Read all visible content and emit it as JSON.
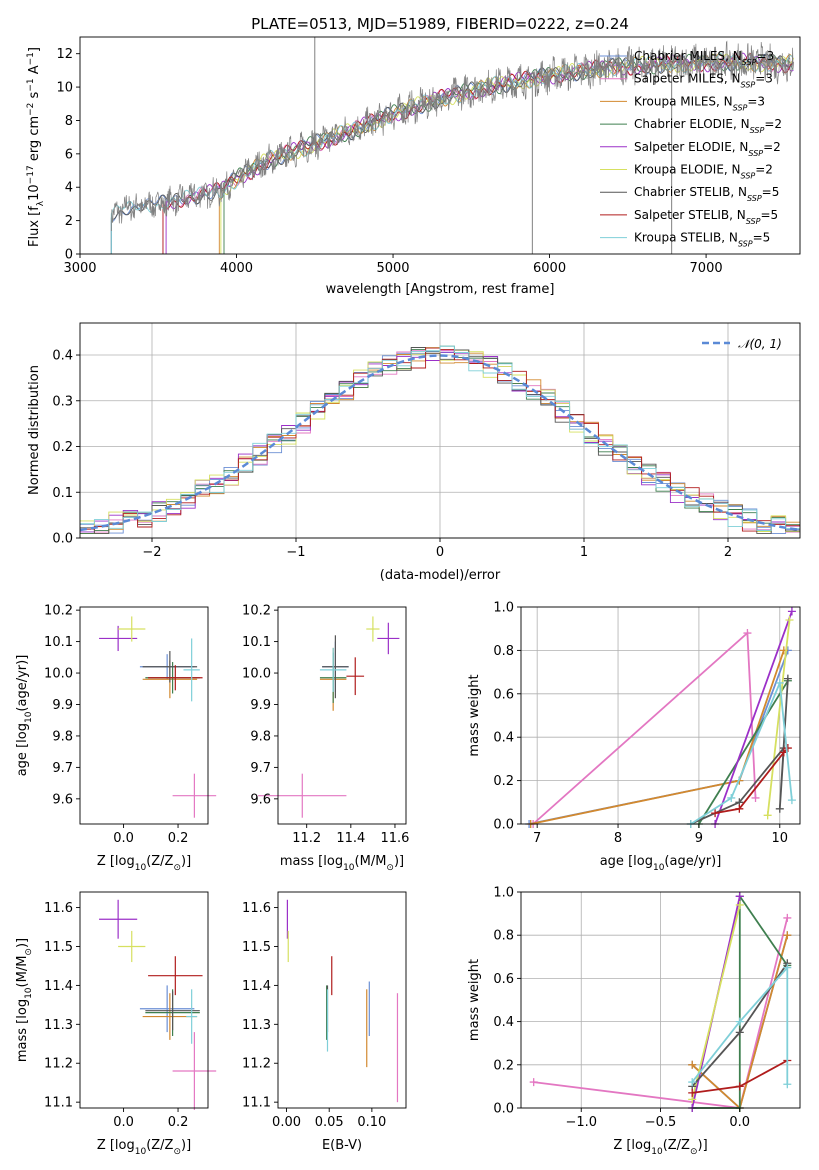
{
  "page": {
    "title": "PLATE=0513, MJD=51989, FIBERID=0222, z=0.24"
  },
  "legend": {
    "entries": [
      {
        "label": "Chabrier MILES, N",
        "sub": "SSP",
        "suffix": "=3",
        "color": "#6b8fd4"
      },
      {
        "label": "Salpeter MILES, N",
        "sub": "SSP",
        "suffix": "=3",
        "color": "#e377c2"
      },
      {
        "label": "Kroupa MILES, N",
        "sub": "SSP",
        "suffix": "=3",
        "color": "#d2892f"
      },
      {
        "label": "Chabrier ELODIE, N",
        "sub": "SSP",
        "suffix": "=2",
        "color": "#3f7f4f"
      },
      {
        "label": "Salpeter ELODIE, N",
        "sub": "SSP",
        "suffix": "=2",
        "color": "#9b30c8"
      },
      {
        "label": "Kroupa ELODIE, N",
        "sub": "SSP",
        "suffix": "=2",
        "color": "#d6e060"
      },
      {
        "label": "Chabrier STELIB, N",
        "sub": "SSP",
        "suffix": "=5",
        "color": "#555555"
      },
      {
        "label": "Salpeter STELIB, N",
        "sub": "SSP",
        "suffix": "=5",
        "color": "#b01c1c"
      },
      {
        "label": "Kroupa STELIB, N",
        "sub": "SSP",
        "suffix": "=5",
        "color": "#7fcfd8"
      }
    ],
    "gauss_label": "𝒩(0, 1)"
  },
  "chart_data": [
    {
      "type": "line",
      "title": "PLATE=0513, MJD=51989, FIBERID=0222, z=0.24",
      "xlabel": "wavelength [Angstrom, rest frame]",
      "ylabel_parts": [
        "Flux [f",
        "λ",
        "10",
        "−17",
        " erg cm",
        "−2",
        " s",
        "−1",
        " A",
        "−1",
        "]"
      ],
      "xlim": [
        3000,
        7600
      ],
      "ylim": [
        0,
        13
      ],
      "xticks": [
        "3000",
        "4000",
        "5000",
        "6000",
        "7000"
      ],
      "yticks": [
        "0",
        "2",
        "4",
        "6",
        "8",
        "10",
        "12"
      ],
      "continuum": [
        [
          3200,
          2.3
        ],
        [
          3300,
          2.8
        ],
        [
          3500,
          3.0
        ],
        [
          3700,
          3.4
        ],
        [
          3900,
          3.8
        ],
        [
          4000,
          4.5
        ],
        [
          4200,
          5.6
        ],
        [
          4500,
          6.6
        ],
        [
          4800,
          7.6
        ],
        [
          5000,
          8.4
        ],
        [
          5300,
          9.3
        ],
        [
          5600,
          10.0
        ],
        [
          6000,
          10.7
        ],
        [
          6400,
          11.2
        ],
        [
          6800,
          11.4
        ],
        [
          7200,
          11.5
        ],
        [
          7500,
          11.4
        ]
      ],
      "model_starts": [
        3200,
        3530,
        3890,
        3920,
        3550,
        3900,
        3200,
        3530,
        3200
      ],
      "spikes": [
        [
          4500,
          13
        ],
        [
          5890,
          0
        ],
        [
          6780,
          0
        ]
      ]
    },
    {
      "type": "bar",
      "xlabel": "(data-model)/error",
      "ylabel": "Normed distribution",
      "xlim": [
        -2.5,
        2.5
      ],
      "ylim": [
        0,
        0.47
      ],
      "xticks": [
        "−2",
        "−1",
        "0",
        "1",
        "2"
      ],
      "yticks": [
        "0.0",
        "0.1",
        "0.2",
        "0.3",
        "0.4"
      ],
      "bin_width": 0.1
    },
    {
      "type": "scatter",
      "xlabel_parts": [
        "Z [log",
        "10",
        "(Z/Z",
        "⊙",
        ")]"
      ],
      "ylabel_parts": [
        "age  [log",
        "10",
        "(age/yr)]"
      ],
      "xlim": [
        -0.16,
        0.31
      ],
      "ylim": [
        9.52,
        10.21
      ],
      "xticks": [
        "0.0",
        "0.2"
      ],
      "yticks": [
        "9.6",
        "9.7",
        "9.8",
        "9.9",
        "10.0",
        "10.1",
        "10.2"
      ],
      "points": [
        {
          "x": 0.16,
          "y": 10.02,
          "ex": 0.1,
          "ey": 0.04,
          "c": 0
        },
        {
          "x": 0.26,
          "y": 9.61,
          "ex": 0.08,
          "ey": 0.07,
          "c": 1
        },
        {
          "x": 0.17,
          "y": 9.98,
          "ex": 0.1,
          "ey": 0.06,
          "c": 2
        },
        {
          "x": 0.18,
          "y": 9.985,
          "ex": 0.1,
          "ey": 0.05,
          "c": 3
        },
        {
          "x": -0.02,
          "y": 10.11,
          "ex": 0.07,
          "ey": 0.04,
          "c": 4
        },
        {
          "x": 0.03,
          "y": 10.14,
          "ex": 0.05,
          "ey": 0.04,
          "c": 5
        },
        {
          "x": 0.17,
          "y": 10.02,
          "ex": 0.1,
          "ey": 0.05,
          "c": 6
        },
        {
          "x": 0.19,
          "y": 9.985,
          "ex": 0.1,
          "ey": 0.04,
          "c": 7
        },
        {
          "x": 0.25,
          "y": 10.01,
          "ex": 0.03,
          "ey": 0.1,
          "c": 8
        }
      ]
    },
    {
      "type": "scatter",
      "xlabel_parts": [
        "mass [log",
        "10",
        "(M/M",
        "⊙",
        ")]"
      ],
      "xlim": [
        11.07,
        11.65
      ],
      "ylim": [
        9.52,
        10.21
      ],
      "xticks": [
        "11.2",
        "11.4",
        "11.6"
      ],
      "yticks": [
        "9.6",
        "9.7",
        "9.8",
        "9.9",
        "10.0",
        "10.1",
        "10.2"
      ],
      "points": [
        {
          "x": 11.33,
          "y": 10.02,
          "ex": 0.06,
          "ey": 0.08,
          "c": 0
        },
        {
          "x": 11.18,
          "y": 9.61,
          "ex": 0.2,
          "ey": 0.07,
          "c": 1
        },
        {
          "x": 11.32,
          "y": 9.98,
          "ex": 0.06,
          "ey": 0.1,
          "c": 2
        },
        {
          "x": 11.32,
          "y": 9.985,
          "ex": 0.06,
          "ey": 0.08,
          "c": 3
        },
        {
          "x": 11.57,
          "y": 10.11,
          "ex": 0.05,
          "ey": 0.05,
          "c": 4
        },
        {
          "x": 11.5,
          "y": 10.14,
          "ex": 0.03,
          "ey": 0.04,
          "c": 5
        },
        {
          "x": 11.33,
          "y": 10.02,
          "ex": 0.06,
          "ey": 0.1,
          "c": 6
        },
        {
          "x": 11.42,
          "y": 9.99,
          "ex": 0.04,
          "ey": 0.06,
          "c": 7
        },
        {
          "x": 11.32,
          "y": 10.01,
          "ex": 0.06,
          "ey": 0.07,
          "c": 8
        }
      ]
    },
    {
      "type": "line",
      "xlabel_parts": [
        "age  [log",
        "10",
        "(age/yr)]"
      ],
      "ylabel": "mass weight",
      "xlim": [
        6.8,
        10.25
      ],
      "ylim": [
        0,
        1
      ],
      "xticks": [
        "7",
        "8",
        "9",
        "10"
      ],
      "yticks": [
        "0.0",
        "0.2",
        "0.4",
        "0.6",
        "0.8",
        "1.0"
      ],
      "series": [
        {
          "c": 0,
          "pts": [
            [
              6.9,
              0.0
            ],
            [
              9.5,
              0.2
            ],
            [
              10.1,
              0.8
            ]
          ]
        },
        {
          "c": 1,
          "pts": [
            [
              9.7,
              0.12
            ],
            [
              9.6,
              0.88
            ],
            [
              6.95,
              0.0
            ]
          ]
        },
        {
          "c": 2,
          "pts": [
            [
              6.92,
              0.0
            ],
            [
              9.5,
              0.2
            ],
            [
              10.05,
              0.8
            ]
          ]
        },
        {
          "c": 3,
          "pts": [
            [
              9.0,
              0.0
            ],
            [
              10.1,
              0.66
            ]
          ]
        },
        {
          "c": 4,
          "pts": [
            [
              9.2,
              0.0
            ],
            [
              10.15,
              0.98
            ]
          ]
        },
        {
          "c": 5,
          "pts": [
            [
              9.85,
              0.04
            ],
            [
              10.12,
              0.94
            ]
          ]
        },
        {
          "c": 6,
          "pts": [
            [
              8.9,
              0.0
            ],
            [
              9.5,
              0.1
            ],
            [
              10.05,
              0.35
            ],
            [
              10.0,
              0.07
            ],
            [
              10.1,
              0.67
            ]
          ]
        },
        {
          "c": 7,
          "pts": [
            [
              9.2,
              0.05
            ],
            [
              9.5,
              0.07
            ],
            [
              10.05,
              0.33
            ],
            [
              10.1,
              0.35
            ]
          ]
        },
        {
          "c": 8,
          "pts": [
            [
              8.9,
              0.0
            ],
            [
              9.4,
              0.12
            ],
            [
              10.0,
              0.65
            ],
            [
              10.15,
              0.11
            ]
          ]
        }
      ]
    },
    {
      "type": "scatter",
      "xlabel_parts": [
        "Z [log",
        "10",
        "(Z/Z",
        "⊙",
        ")]"
      ],
      "ylabel_parts": [
        "mass [log",
        "10",
        "(M/M",
        "⊙",
        ")]"
      ],
      "xlim": [
        -0.16,
        0.31
      ],
      "ylim": [
        11.085,
        11.64
      ],
      "xticks": [
        "0.0",
        "0.2"
      ],
      "yticks": [
        "11.1",
        "11.2",
        "11.3",
        "11.4",
        "11.5",
        "11.6"
      ],
      "points": [
        {
          "x": 0.16,
          "y": 11.34,
          "ex": 0.1,
          "ey": 0.06,
          "c": 0
        },
        {
          "x": 0.26,
          "y": 11.18,
          "ex": 0.08,
          "ey": 0.1,
          "c": 1
        },
        {
          "x": 0.17,
          "y": 11.32,
          "ex": 0.1,
          "ey": 0.06,
          "c": 2
        },
        {
          "x": 0.18,
          "y": 11.33,
          "ex": 0.1,
          "ey": 0.06,
          "c": 3
        },
        {
          "x": -0.02,
          "y": 11.57,
          "ex": 0.07,
          "ey": 0.05,
          "c": 4
        },
        {
          "x": 0.03,
          "y": 11.5,
          "ex": 0.05,
          "ey": 0.04,
          "c": 5
        },
        {
          "x": 0.18,
          "y": 11.335,
          "ex": 0.1,
          "ey": 0.05,
          "c": 6
        },
        {
          "x": 0.19,
          "y": 11.425,
          "ex": 0.1,
          "ey": 0.05,
          "c": 7
        },
        {
          "x": 0.25,
          "y": 11.32,
          "ex": 0.02,
          "ey": 0.07,
          "c": 8
        }
      ]
    },
    {
      "type": "scatter",
      "xlabel": "E(B-V)",
      "xlim": [
        -0.01,
        0.14
      ],
      "ylim": [
        11.085,
        11.64
      ],
      "xticks": [
        "0.00",
        "0.05",
        "0.10"
      ],
      "yticks": [
        "11.1",
        "11.2",
        "11.3",
        "11.4",
        "11.5",
        "11.6"
      ],
      "points": [
        {
          "x": 0.097,
          "y": 11.34,
          "ex": 0,
          "ey": 0.07,
          "c": 0
        },
        {
          "x": 0.13,
          "y": 11.24,
          "ex": 0,
          "ey": 0.14,
          "c": 1
        },
        {
          "x": 0.094,
          "y": 11.29,
          "ex": 0,
          "ey": 0.1,
          "c": 2
        },
        {
          "x": 0.047,
          "y": 11.33,
          "ex": 0,
          "ey": 0.07,
          "c": 3
        },
        {
          "x": 0.001,
          "y": 11.57,
          "ex": 0,
          "ey": 0.05,
          "c": 4
        },
        {
          "x": 0.002,
          "y": 11.5,
          "ex": 0,
          "ey": 0.04,
          "c": 5
        },
        {
          "x": 0.048,
          "y": 11.34,
          "ex": 0,
          "ey": 0.06,
          "c": 6
        },
        {
          "x": 0.053,
          "y": 11.425,
          "ex": 0,
          "ey": 0.05,
          "c": 7
        },
        {
          "x": 0.048,
          "y": 11.31,
          "ex": 0,
          "ey": 0.08,
          "c": 8
        }
      ]
    },
    {
      "type": "line",
      "xlabel_parts": [
        "Z [log",
        "10",
        "(Z/Z",
        "⊙",
        ")]"
      ],
      "ylabel": "mass weight",
      "xlim": [
        -1.38,
        0.38
      ],
      "ylim": [
        0,
        1
      ],
      "xticks": [
        "−1.0",
        "−0.5",
        "0.0"
      ],
      "yticks": [
        "0.0",
        "0.2",
        "0.4",
        "0.6",
        "0.8",
        "1.0"
      ],
      "series": [
        {
          "c": 0,
          "pts": [
            [
              -0.3,
              0.2
            ],
            [
              0.0,
              0.0
            ],
            [
              0.3,
              0.8
            ]
          ]
        },
        {
          "c": 1,
          "pts": [
            [
              -1.3,
              0.12
            ],
            [
              0.0,
              0.0
            ],
            [
              0.3,
              0.88
            ]
          ]
        },
        {
          "c": 2,
          "pts": [
            [
              -0.3,
              0.2
            ],
            [
              0.0,
              0.0
            ],
            [
              0.3,
              0.8
            ]
          ]
        },
        {
          "c": 3,
          "pts": [
            [
              -0.3,
              0.0
            ],
            [
              0.0,
              0.0
            ],
            [
              0.0,
              0.98
            ],
            [
              0.3,
              0.66
            ]
          ]
        },
        {
          "c": 4,
          "pts": [
            [
              -0.3,
              0.0
            ],
            [
              0.0,
              0.98
            ]
          ]
        },
        {
          "c": 5,
          "pts": [
            [
              -0.3,
              0.04
            ],
            [
              0.0,
              0.94
            ]
          ]
        },
        {
          "c": 6,
          "pts": [
            [
              -0.3,
              0.1
            ],
            [
              0.0,
              0.35
            ],
            [
              0.3,
              0.67
            ]
          ]
        },
        {
          "c": 7,
          "pts": [
            [
              -0.3,
              0.07
            ],
            [
              0.0,
              0.1
            ],
            [
              0.3,
              0.22
            ]
          ]
        },
        {
          "c": 8,
          "pts": [
            [
              -0.3,
              0.12
            ],
            [
              0.0,
              0.4
            ],
            [
              0.3,
              0.65
            ],
            [
              0.3,
              0.11
            ]
          ]
        }
      ]
    }
  ]
}
